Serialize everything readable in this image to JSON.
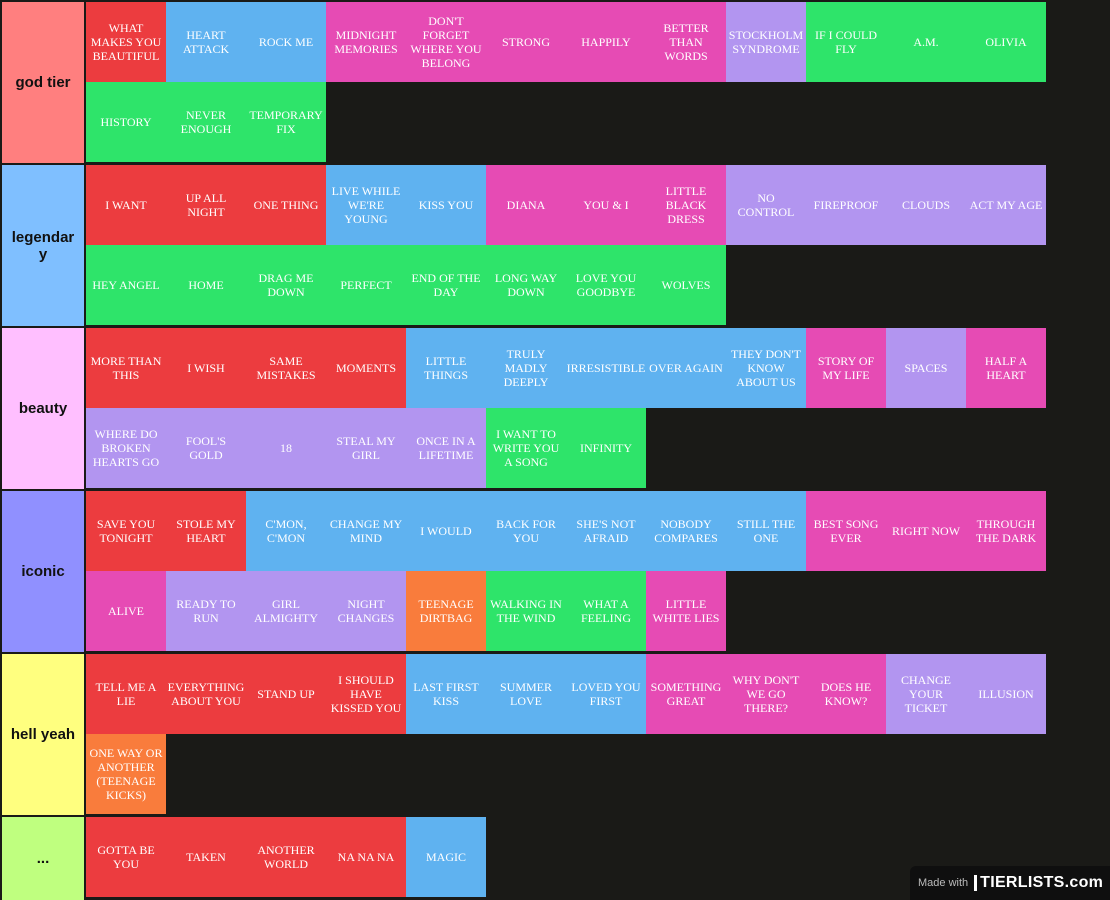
{
  "tiers": [
    {
      "label": "god tier",
      "color": "#ff7f7f",
      "items": [
        {
          "text": "WHAT MAKES YOU BEAUTIFUL",
          "color": "red"
        },
        {
          "text": "HEART ATTACK",
          "color": "blue"
        },
        {
          "text": "ROCK ME",
          "color": "blue"
        },
        {
          "text": "MIDNIGHT MEMORIES",
          "color": "pink"
        },
        {
          "text": "DON'T FORGET WHERE YOU BELONG",
          "color": "pink"
        },
        {
          "text": "STRONG",
          "color": "pink"
        },
        {
          "text": "HAPPILY",
          "color": "pink"
        },
        {
          "text": "BETTER THAN WORDS",
          "color": "pink"
        },
        {
          "text": "STOCKHOLM SYNDROME",
          "color": "lav"
        },
        {
          "text": "IF I COULD FLY",
          "color": "green"
        },
        {
          "text": "A.M.",
          "color": "green"
        },
        {
          "text": "OLIVIA",
          "color": "green"
        },
        {
          "text": "HISTORY",
          "color": "green"
        },
        {
          "text": "NEVER ENOUGH",
          "color": "green"
        },
        {
          "text": "TEMPORARY FIX",
          "color": "green"
        }
      ]
    },
    {
      "label": "legendary",
      "color": "#7fbfff",
      "items": [
        {
          "text": "I WANT",
          "color": "red"
        },
        {
          "text": "UP ALL NIGHT",
          "color": "red"
        },
        {
          "text": "ONE THING",
          "color": "red"
        },
        {
          "text": "LIVE WHILE WE'RE YOUNG",
          "color": "blue"
        },
        {
          "text": "KISS YOU",
          "color": "blue"
        },
        {
          "text": "DIANA",
          "color": "pink"
        },
        {
          "text": "YOU & I",
          "color": "pink"
        },
        {
          "text": "LITTLE BLACK DRESS",
          "color": "pink"
        },
        {
          "text": "NO CONTROL",
          "color": "lav"
        },
        {
          "text": "FIREPROOF",
          "color": "lav"
        },
        {
          "text": "CLOUDS",
          "color": "lav"
        },
        {
          "text": "ACT MY AGE",
          "color": "lav"
        },
        {
          "text": "HEY ANGEL",
          "color": "green"
        },
        {
          "text": "HOME",
          "color": "green"
        },
        {
          "text": "DRAG ME DOWN",
          "color": "green"
        },
        {
          "text": "PERFECT",
          "color": "green"
        },
        {
          "text": "END OF THE DAY",
          "color": "green"
        },
        {
          "text": "LONG WAY DOWN",
          "color": "green"
        },
        {
          "text": "LOVE YOU GOODBYE",
          "color": "green"
        },
        {
          "text": "WOLVES",
          "color": "green"
        }
      ]
    },
    {
      "label": "beauty",
      "color": "#ffbfff",
      "items": [
        {
          "text": "MORE THAN THIS",
          "color": "red"
        },
        {
          "text": "I WISH",
          "color": "red"
        },
        {
          "text": "SAME MISTAKES",
          "color": "red"
        },
        {
          "text": "MOMENTS",
          "color": "red"
        },
        {
          "text": "LITTLE THINGS",
          "color": "blue"
        },
        {
          "text": "TRULY MADLY DEEPLY",
          "color": "blue"
        },
        {
          "text": "IRRESISTIBLE",
          "color": "blue"
        },
        {
          "text": "OVER AGAIN",
          "color": "blue"
        },
        {
          "text": "THEY DON'T KNOW ABOUT US",
          "color": "blue"
        },
        {
          "text": "STORY OF MY LIFE",
          "color": "pink"
        },
        {
          "text": "SPACES",
          "color": "lav"
        },
        {
          "text": "HALF A HEART",
          "color": "pink"
        },
        {
          "text": "WHERE DO BROKEN HEARTS GO",
          "color": "lav"
        },
        {
          "text": "FOOL'S GOLD",
          "color": "lav"
        },
        {
          "text": "18",
          "color": "lav"
        },
        {
          "text": "STEAL MY GIRL",
          "color": "lav"
        },
        {
          "text": "ONCE IN A LIFETIME",
          "color": "lav"
        },
        {
          "text": "I WANT TO WRITE YOU A SONG",
          "color": "green"
        },
        {
          "text": "INFINITY",
          "color": "green"
        }
      ]
    },
    {
      "label": "iconic",
      "color": "#9090ff",
      "items": [
        {
          "text": "SAVE YOU TONIGHT",
          "color": "red"
        },
        {
          "text": "STOLE MY HEART",
          "color": "red"
        },
        {
          "text": "C'MON, C'MON",
          "color": "blue"
        },
        {
          "text": "CHANGE MY MIND",
          "color": "blue"
        },
        {
          "text": "I WOULD",
          "color": "blue"
        },
        {
          "text": "BACK FOR YOU",
          "color": "blue"
        },
        {
          "text": "SHE'S NOT AFRAID",
          "color": "blue"
        },
        {
          "text": "NOBODY COMPARES",
          "color": "blue"
        },
        {
          "text": "STILL THE ONE",
          "color": "blue"
        },
        {
          "text": "BEST SONG EVER",
          "color": "pink"
        },
        {
          "text": "RIGHT NOW",
          "color": "pink"
        },
        {
          "text": "THROUGH THE DARK",
          "color": "pink"
        },
        {
          "text": "ALIVE",
          "color": "pink"
        },
        {
          "text": "READY TO RUN",
          "color": "lav"
        },
        {
          "text": "GIRL ALMIGHTY",
          "color": "lav"
        },
        {
          "text": "NIGHT CHANGES",
          "color": "lav"
        },
        {
          "text": "TEENAGE DIRTBAG",
          "color": "orange"
        },
        {
          "text": "WALKING IN THE WIND",
          "color": "green"
        },
        {
          "text": "WHAT A FEELING",
          "color": "green"
        },
        {
          "text": "LITTLE WHITE LIES",
          "color": "pink"
        }
      ]
    },
    {
      "label": "hell yeah",
      "color": "#ffff7f",
      "items": [
        {
          "text": "TELL ME A LIE",
          "color": "red"
        },
        {
          "text": "EVERYTHING ABOUT YOU",
          "color": "red"
        },
        {
          "text": "STAND UP",
          "color": "red"
        },
        {
          "text": "I SHOULD HAVE KISSED YOU",
          "color": "red"
        },
        {
          "text": "LAST FIRST KISS",
          "color": "blue"
        },
        {
          "text": "SUMMER LOVE",
          "color": "blue"
        },
        {
          "text": "LOVED YOU FIRST",
          "color": "blue"
        },
        {
          "text": "SOMETHING GREAT",
          "color": "pink"
        },
        {
          "text": "WHY DON'T WE GO THERE?",
          "color": "pink"
        },
        {
          "text": "DOES HE KNOW?",
          "color": "pink"
        },
        {
          "text": "CHANGE YOUR TICKET",
          "color": "lav"
        },
        {
          "text": "ILLUSION",
          "color": "lav"
        },
        {
          "text": "ONE WAY OR ANOTHER (TEENAGE KICKS)",
          "color": "orange"
        }
      ]
    },
    {
      "label": "...",
      "color": "#bfff7f",
      "items": [
        {
          "text": "GOTTA BE YOU",
          "color": "red"
        },
        {
          "text": "TAKEN",
          "color": "red"
        },
        {
          "text": "ANOTHER WORLD",
          "color": "red"
        },
        {
          "text": "NA NA NA",
          "color": "red"
        },
        {
          "text": "MAGIC",
          "color": "blue"
        }
      ]
    }
  ],
  "watermark": {
    "made_with": "Made with",
    "logo": "TIERLISTS.com"
  }
}
